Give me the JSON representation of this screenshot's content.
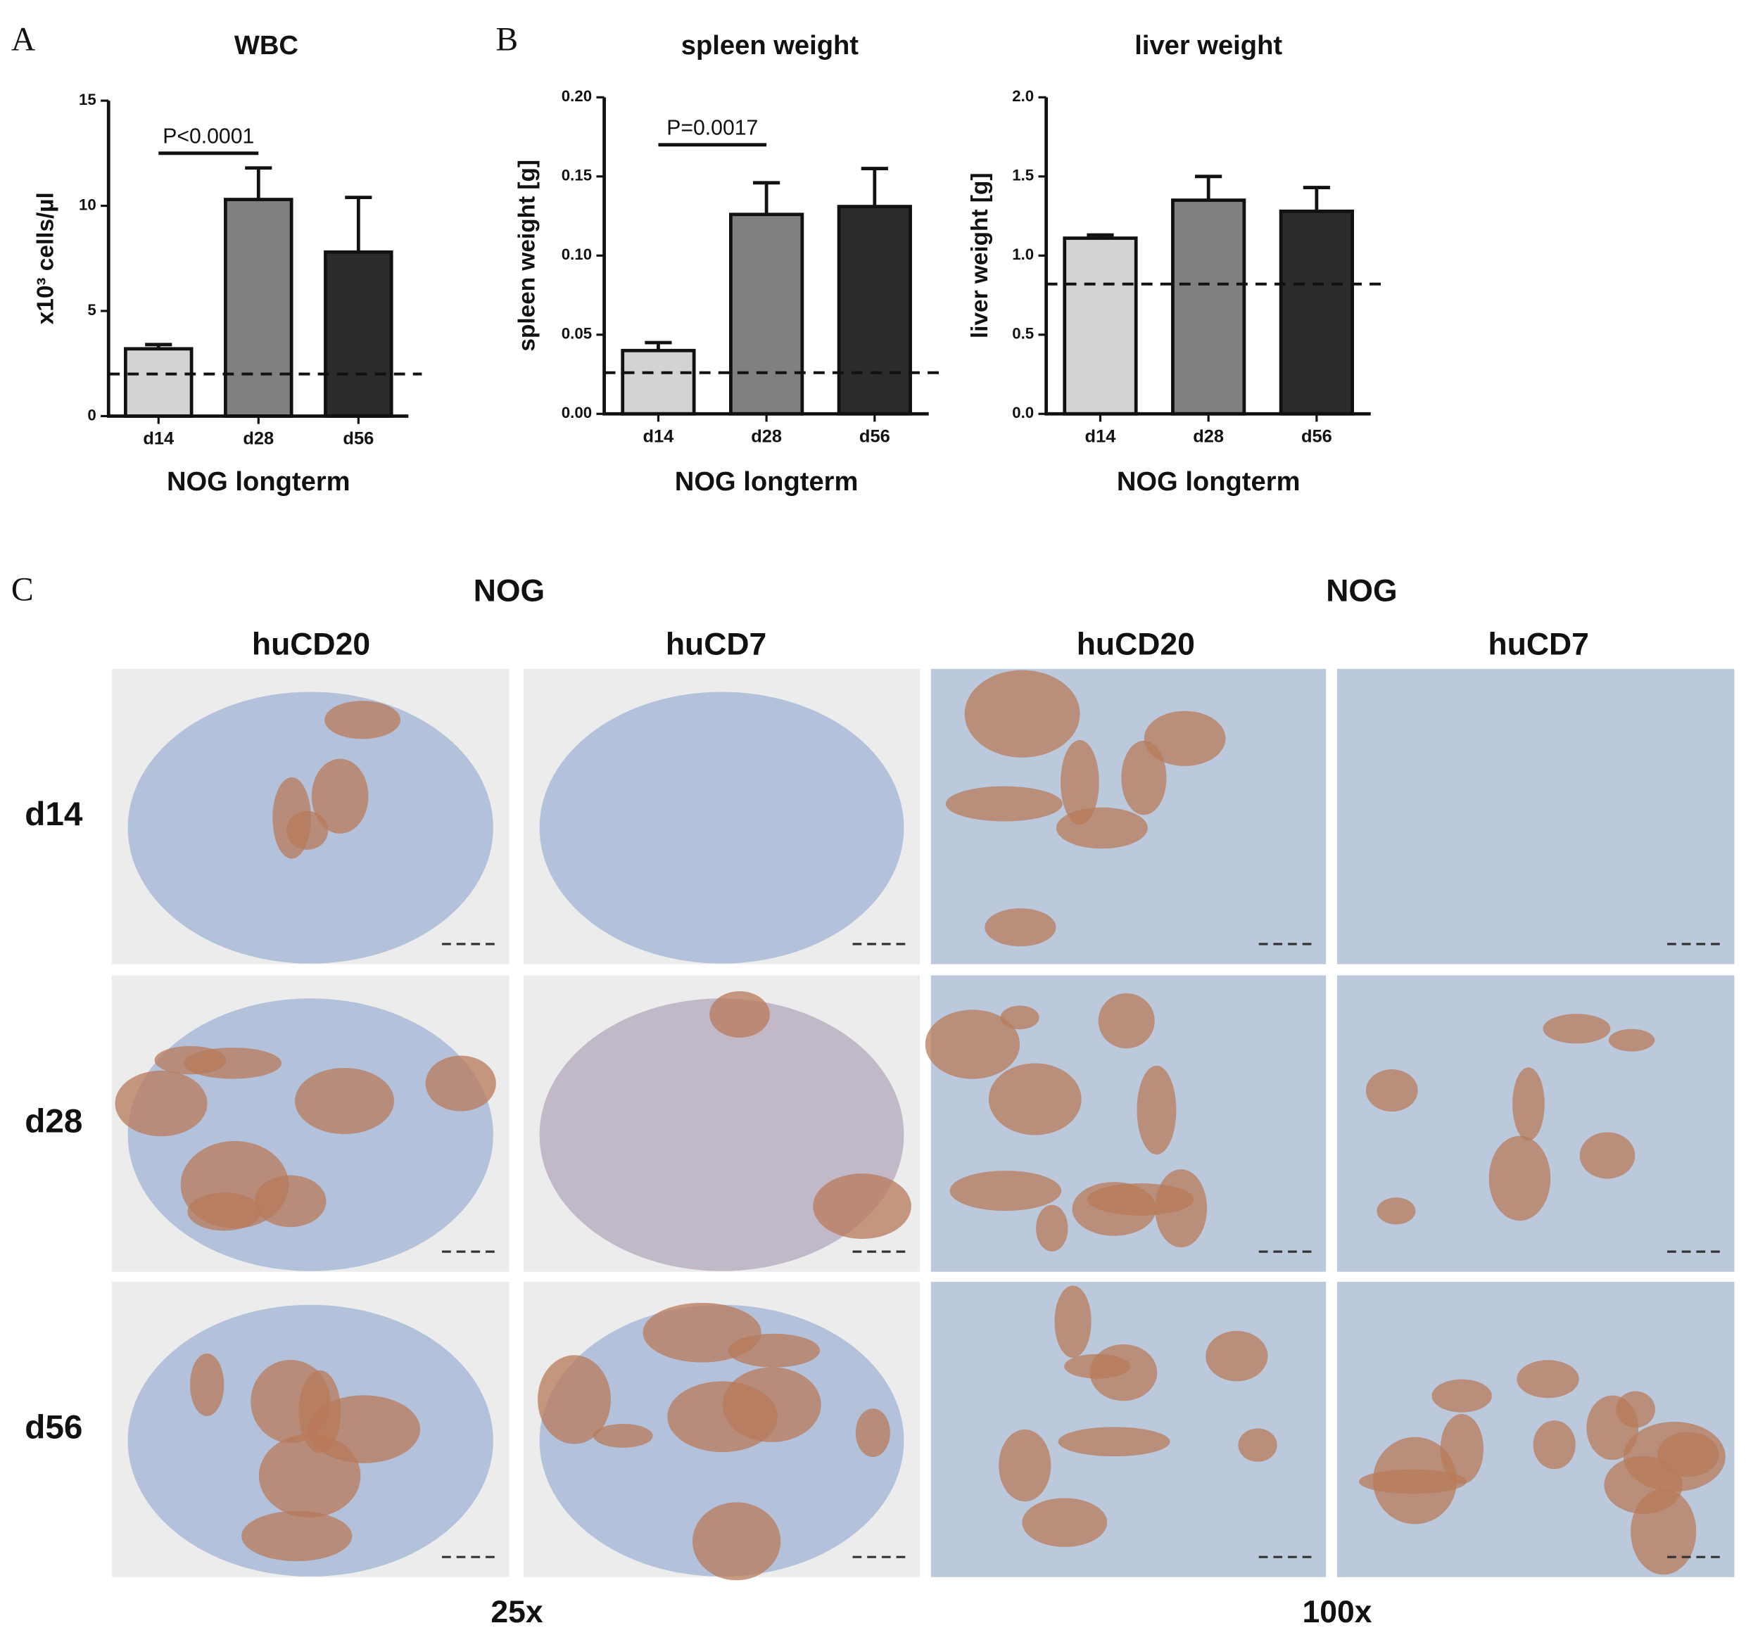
{
  "panel_labels": [
    "A",
    "B",
    "C"
  ],
  "chart_data": [
    {
      "type": "bar",
      "title": "WBC",
      "y_label": "x10³ cells/µl",
      "x_label": "NOG longterm",
      "categories": [
        "d14",
        "d28",
        "d56"
      ],
      "values": [
        3.2,
        10.3,
        7.8
      ],
      "errors": [
        0.2,
        1.5,
        2.6
      ],
      "colors": [
        "#d3d3d3",
        "#808080",
        "#2b2b2b"
      ],
      "reference_line": 2.0,
      "ylim": [
        0,
        15
      ],
      "yticks": [
        0,
        5,
        10,
        15
      ],
      "annotation": "P<0.0001"
    },
    {
      "type": "bar",
      "title": "spleen weight",
      "y_label": "spleen weight [g]",
      "x_label": "NOG longterm",
      "categories": [
        "d14",
        "d28",
        "d56"
      ],
      "values": [
        0.04,
        0.126,
        0.131
      ],
      "errors": [
        0.005,
        0.02,
        0.024
      ],
      "colors": [
        "#d3d3d3",
        "#808080",
        "#2b2b2b"
      ],
      "reference_line": 0.026,
      "ylim": [
        0,
        0.2
      ],
      "yticks": [
        {
          "value": 0,
          "label": "0.00"
        },
        0.05,
        {
          "value": 0.1,
          "label": "0.10"
        },
        0.15,
        {
          "value": 0.2,
          "label": "0.20"
        }
      ],
      "annotation": "P=0.0017"
    },
    {
      "type": "bar",
      "title": "liver weight",
      "y_label": "liver weight [g]",
      "x_label": "NOG longterm",
      "categories": [
        "d14",
        "d28",
        "d56"
      ],
      "values": [
        1.11,
        1.35,
        1.28
      ],
      "errors": [
        0.02,
        0.15,
        0.15
      ],
      "colors": [
        "#d3d3d3",
        "#808080",
        "#2b2b2b"
      ],
      "reference_line": 0.82,
      "ylim": [
        0,
        2
      ],
      "yticks": [
        {
          "value": 0,
          "label": "0.0"
        },
        0.5,
        {
          "value": 1,
          "label": "1.0"
        },
        1.5,
        {
          "value": 2,
          "label": "2.0"
        }
      ]
    }
  ],
  "panel_c": {
    "groups": [
      {
        "title": "NOG",
        "columns": [
          "huCD20",
          "huCD7"
        ],
        "magnification": "25x"
      },
      {
        "title": "NOG",
        "columns": [
          "huCD20",
          "huCD7"
        ],
        "magnification": "100x"
      }
    ],
    "rows": [
      "d14",
      "d28",
      "d56"
    ]
  }
}
